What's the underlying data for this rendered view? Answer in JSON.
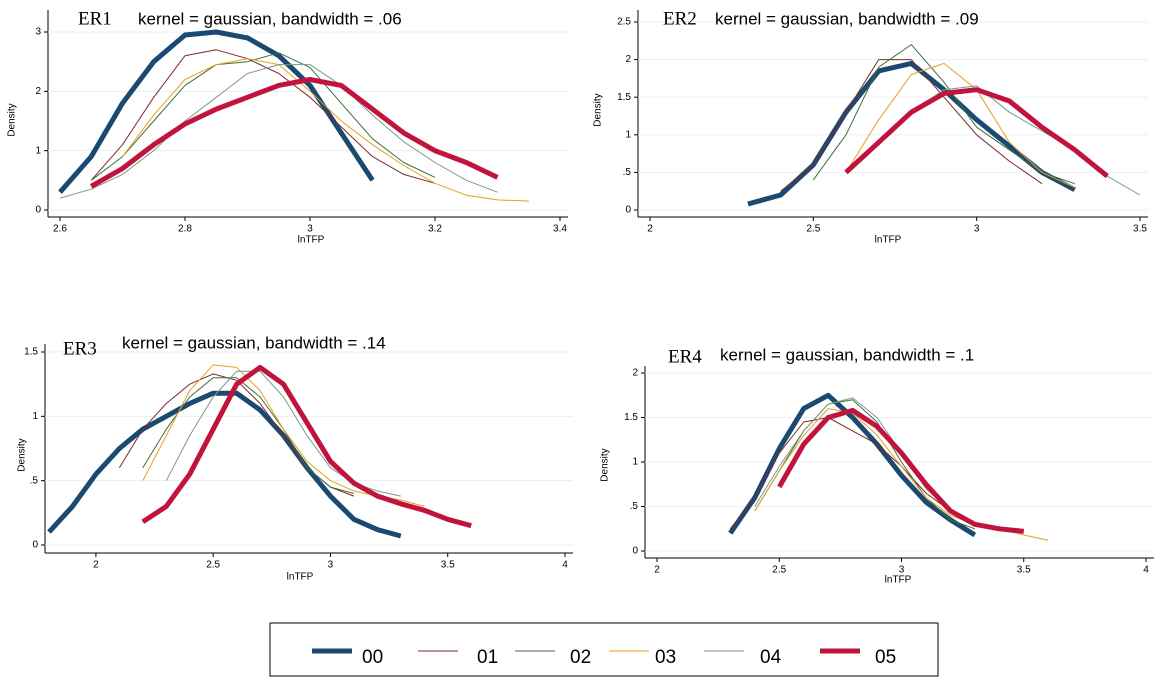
{
  "legend": {
    "series": [
      {
        "name": "00",
        "color": "#1a4a72"
      },
      {
        "name": "01",
        "color": "#7b2a2a"
      },
      {
        "name": "02",
        "color": "#3f6e3a"
      },
      {
        "name": "03",
        "color": "#e8a020"
      },
      {
        "name": "04",
        "color": "#7a9a8a"
      },
      {
        "name": "05",
        "color": "#c0143c"
      }
    ]
  },
  "chart_data": [
    {
      "type": "line",
      "label": "ER1",
      "title": "kernel = gaussian, bandwidth = .06",
      "xlabel": "lnTFP",
      "ylabel": "Density",
      "x": [
        2.6,
        2.65,
        2.7,
        2.75,
        2.8,
        2.85,
        2.9,
        2.95,
        3.0,
        3.05,
        3.1,
        3.15,
        3.2,
        3.25,
        3.3,
        3.35
      ],
      "series": [
        {
          "values": [
            0.3,
            0.9,
            1.8,
            2.5,
            2.95,
            3.0,
            2.9,
            2.6,
            2.1,
            1.3,
            0.5,
            null,
            null,
            null,
            null,
            null
          ]
        },
        {
          "values": [
            null,
            0.5,
            1.1,
            1.9,
            2.6,
            2.7,
            2.55,
            2.3,
            1.9,
            1.4,
            0.9,
            0.6,
            0.45,
            null,
            null,
            null
          ]
        },
        {
          "values": [
            null,
            0.5,
            0.9,
            1.5,
            2.1,
            2.45,
            2.5,
            2.65,
            2.4,
            1.8,
            1.2,
            0.8,
            0.55,
            null,
            null,
            null
          ]
        },
        {
          "values": [
            null,
            null,
            0.9,
            1.6,
            2.2,
            2.45,
            2.55,
            2.45,
            2.0,
            1.5,
            1.1,
            0.75,
            0.45,
            0.25,
            0.17,
            0.15
          ]
        },
        {
          "values": [
            0.2,
            0.35,
            0.6,
            1.0,
            1.5,
            1.9,
            2.3,
            2.45,
            2.45,
            2.1,
            1.6,
            1.15,
            0.8,
            0.5,
            0.3,
            null
          ]
        },
        {
          "values": [
            null,
            0.4,
            0.7,
            1.1,
            1.45,
            1.7,
            1.9,
            2.1,
            2.2,
            2.1,
            1.7,
            1.3,
            1.0,
            0.8,
            0.55,
            null
          ]
        }
      ],
      "xlim": [
        2.6,
        3.4
      ],
      "xticks": [
        2.6,
        2.8,
        3,
        3.2,
        3.4
      ],
      "ylim": [
        0,
        3
      ],
      "yticks": [
        0,
        1,
        2,
        3
      ],
      "grid": true
    },
    {
      "type": "line",
      "label": "ER2",
      "title": "kernel = gaussian, bandwidth = .09",
      "xlabel": "lnTFP",
      "ylabel": "Density",
      "x": [
        2.3,
        2.4,
        2.5,
        2.6,
        2.7,
        2.8,
        2.9,
        3.0,
        3.1,
        3.2,
        3.3,
        3.4,
        3.5
      ],
      "series": [
        {
          "values": [
            0.08,
            0.2,
            0.6,
            1.3,
            1.85,
            1.95,
            1.6,
            1.2,
            0.85,
            0.5,
            0.27,
            null,
            null
          ]
        },
        {
          "values": [
            null,
            0.25,
            0.6,
            1.3,
            2.0,
            2.0,
            1.5,
            1.0,
            0.65,
            0.35,
            null,
            null,
            null
          ]
        },
        {
          "values": [
            null,
            null,
            0.4,
            1.0,
            1.9,
            2.2,
            1.7,
            1.1,
            0.8,
            0.5,
            0.35,
            null,
            null
          ]
        },
        {
          "values": [
            null,
            null,
            null,
            0.5,
            1.2,
            1.8,
            1.95,
            1.6,
            0.9,
            0.5,
            0.3,
            null,
            null
          ]
        },
        {
          "values": [
            null,
            null,
            null,
            0.5,
            0.9,
            1.3,
            1.6,
            1.65,
            1.3,
            1.05,
            0.8,
            0.45,
            0.2
          ]
        },
        {
          "values": [
            null,
            null,
            null,
            0.5,
            0.9,
            1.3,
            1.55,
            1.6,
            1.45,
            1.1,
            0.8,
            0.45,
            null
          ]
        }
      ],
      "xlim": [
        2,
        3.5
      ],
      "xticks": [
        2,
        2.5,
        3,
        3.5
      ],
      "ylim": [
        0,
        2.5
      ],
      "yticks": [
        0,
        {
          "value": 0.5,
          "label": ".5"
        },
        1,
        1.5,
        2,
        2.5
      ],
      "grid": true
    },
    {
      "type": "line",
      "label": "ER3",
      "title": "kernel = gaussian, bandwidth = .14",
      "xlabel": "lnTFP",
      "ylabel": "Density",
      "x": [
        1.8,
        1.9,
        2.0,
        2.1,
        2.2,
        2.3,
        2.4,
        2.5,
        2.6,
        2.7,
        2.8,
        2.9,
        3.0,
        3.1,
        3.2,
        3.3,
        3.4,
        3.5,
        3.6,
        3.7
      ],
      "series": [
        {
          "values": [
            0.1,
            0.3,
            0.55,
            0.75,
            0.9,
            1.0,
            1.1,
            1.18,
            1.18,
            1.05,
            0.85,
            0.6,
            0.38,
            0.2,
            0.12,
            0.07,
            null,
            null,
            null,
            null
          ]
        },
        {
          "values": [
            null,
            null,
            null,
            0.6,
            0.9,
            1.1,
            1.25,
            1.33,
            1.28,
            1.1,
            0.85,
            0.6,
            0.45,
            0.38,
            null,
            null,
            null,
            null,
            null,
            null
          ]
        },
        {
          "values": [
            null,
            null,
            null,
            null,
            0.6,
            0.9,
            1.15,
            1.3,
            1.3,
            1.15,
            0.9,
            0.6,
            0.45,
            0.4,
            null,
            null,
            null,
            null,
            null,
            null
          ]
        },
        {
          "values": [
            null,
            null,
            null,
            null,
            0.5,
            0.85,
            1.2,
            1.4,
            1.38,
            1.2,
            0.9,
            0.65,
            0.5,
            0.42,
            0.38,
            0.35,
            0.3,
            null,
            null,
            null
          ]
        },
        {
          "values": [
            null,
            null,
            null,
            null,
            null,
            0.5,
            0.85,
            1.15,
            1.35,
            1.35,
            1.15,
            0.85,
            0.6,
            0.48,
            0.42,
            0.38,
            null,
            null,
            null,
            null
          ]
        },
        {
          "values": [
            null,
            null,
            null,
            null,
            0.18,
            0.3,
            0.55,
            0.9,
            1.25,
            1.38,
            1.25,
            0.95,
            0.65,
            0.48,
            0.38,
            0.32,
            0.27,
            0.2,
            0.15,
            null
          ]
        }
      ],
      "xlim": [
        1.8,
        4
      ],
      "xticks": [
        2,
        2.5,
        3,
        3.5,
        4
      ],
      "ylim": [
        0,
        1.5
      ],
      "yticks": [
        0,
        {
          "value": 0.5,
          "label": ".5"
        },
        1,
        1.5
      ],
      "grid": true
    },
    {
      "type": "line",
      "label": "ER4",
      "title": "kernel = gaussian, bandwidth = .1",
      "xlabel": "lnTFP",
      "ylabel": "Density",
      "x": [
        2.3,
        2.4,
        2.5,
        2.6,
        2.7,
        2.8,
        2.9,
        3.0,
        3.1,
        3.2,
        3.3,
        3.4,
        3.5,
        3.6
      ],
      "series": [
        {
          "values": [
            0.2,
            0.6,
            1.15,
            1.6,
            1.75,
            1.5,
            1.2,
            0.85,
            0.55,
            0.35,
            0.18,
            null,
            null,
            null
          ]
        },
        {
          "values": [
            0.25,
            0.6,
            1.1,
            1.45,
            1.5,
            1.35,
            1.2,
            0.95,
            0.65,
            0.45,
            0.3,
            null,
            null,
            null
          ]
        },
        {
          "values": [
            null,
            0.45,
            0.9,
            1.35,
            1.65,
            1.7,
            1.45,
            1.0,
            0.6,
            0.35,
            0.25,
            null,
            null,
            null
          ]
        },
        {
          "values": [
            null,
            0.45,
            0.9,
            1.3,
            1.6,
            1.55,
            1.3,
            0.95,
            0.6,
            0.4,
            0.3,
            0.25,
            0.18,
            0.12
          ]
        },
        {
          "values": [
            null,
            0.5,
            0.95,
            1.35,
            1.65,
            1.72,
            1.5,
            1.1,
            0.7,
            0.45,
            0.3,
            null,
            null,
            null
          ]
        },
        {
          "values": [
            null,
            null,
            0.72,
            1.2,
            1.5,
            1.58,
            1.4,
            1.1,
            0.75,
            0.45,
            0.3,
            0.25,
            0.22,
            null
          ]
        }
      ],
      "xlim": [
        2,
        4
      ],
      "xticks": [
        2,
        2.5,
        3,
        3.5,
        4
      ],
      "ylim": [
        0,
        2
      ],
      "yticks": [
        0,
        {
          "value": 0.5,
          "label": ".5"
        },
        1,
        1.5,
        2
      ],
      "grid": true
    }
  ]
}
